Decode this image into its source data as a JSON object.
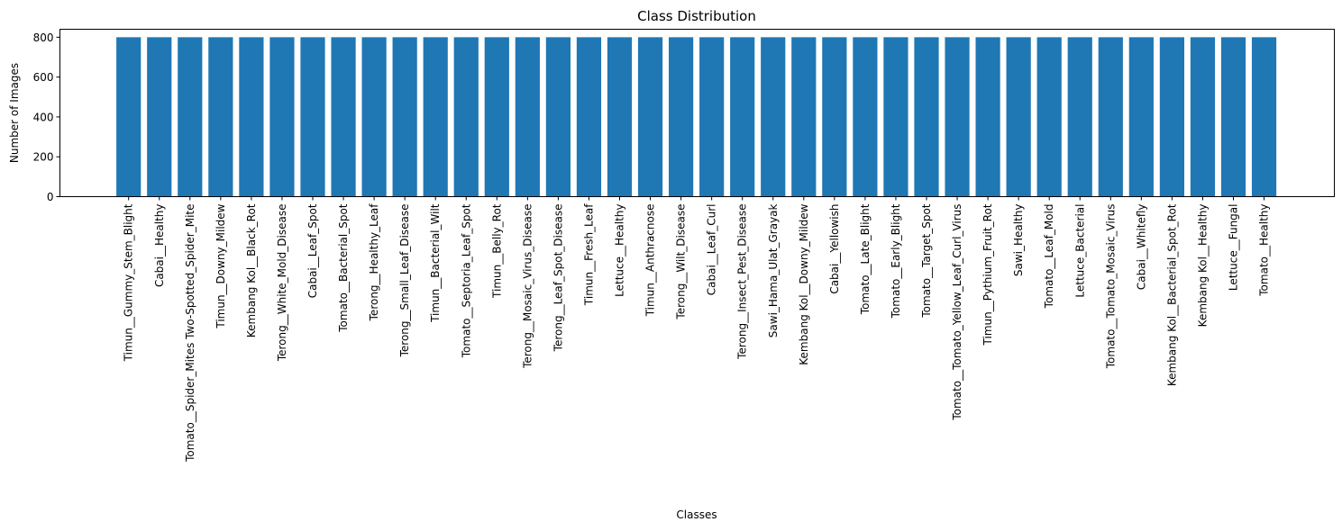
{
  "chart_data": {
    "type": "bar",
    "title": "Class Distribution",
    "xlabel": "Classes",
    "ylabel": "Number of Images",
    "ylim": [
      0,
      840
    ],
    "yticks": [
      0,
      200,
      400,
      600,
      800
    ],
    "bar_color": "#1f77b4",
    "grid": false,
    "categories": [
      "Timun__Gummy_Stem_Blight",
      "Cabai__Healthy",
      "Tomato__Spider_Mites Two-Spotted_Spider_Mite",
      "Timun__Downy_Mildew",
      "Kembang Kol__Black_Rot",
      "Terong__White_Mold_Disease",
      "Cabai__Leaf_Spot",
      "Tomato__Bacterial_Spot",
      "Terong__Healthy_Leaf",
      "Terong__Small_Leaf_Disease",
      "Timun__Bacterial_Wilt",
      "Tomato__Septoria_Leaf_Spot",
      "Timun__Belly_Rot",
      "Terong__Mosaic_Virus_Disease",
      "Terong__Leaf_Spot_Disease",
      "Timun__Fresh_Leaf",
      "Lettuce__Healthy",
      "Timun__Anthracnose",
      "Terong__Wilt_Disease",
      "Cabai__Leaf_Curl",
      "Terong__Insect_Pest_Disease",
      "Sawi_Hama_Ulat_Grayak",
      "Kembang Kol__Downy_Mildew",
      "Cabai__Yellowish",
      "Tomato__Late_Blight",
      "Tomato__Early_Blight",
      "Tomato__Target_Spot",
      "Tomato__Tomato_Yellow_Leaf_Curl_Virus",
      "Timun__Pythium_Fruit_Rot",
      "Sawi_Healthy",
      "Tomato__Leaf_Mold",
      "Lettuce_Bacterial",
      "Tomato__Tomato_Mosaic_Virus",
      "Cabai__Whitefly",
      "Kembang Kol__Bacterial_Spot_Rot",
      "Kembang Kol__Healthy",
      "Lettuce__Fungal",
      "Tomato__Healthy"
    ],
    "values": [
      800,
      800,
      800,
      800,
      800,
      800,
      800,
      800,
      800,
      800,
      800,
      800,
      800,
      800,
      800,
      800,
      800,
      800,
      800,
      800,
      800,
      800,
      800,
      800,
      800,
      800,
      800,
      800,
      800,
      800,
      800,
      800,
      800,
      800,
      800,
      800,
      800,
      800
    ]
  }
}
